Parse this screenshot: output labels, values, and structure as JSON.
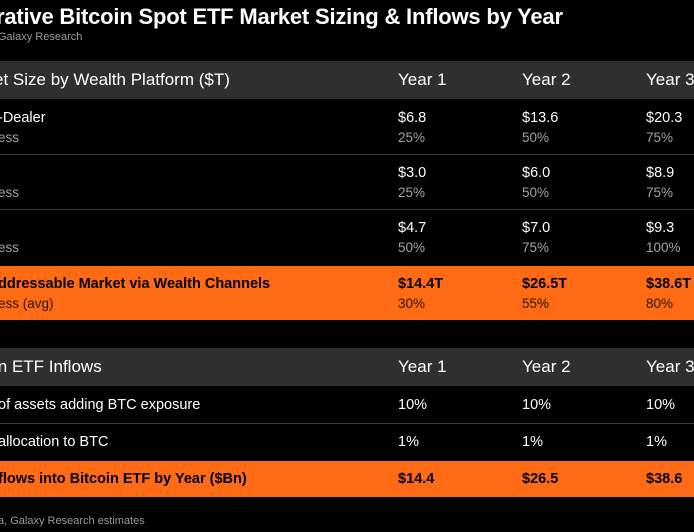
{
  "title": "rative Bitcoin Spot ETF Market Sizing & Inflows by Year",
  "subtitle": "Galaxy Research",
  "market": {
    "header": "et Size by Wealth Platform ($T)",
    "years": [
      "Year 1",
      "Year 2",
      "Year 3"
    ],
    "rows": [
      {
        "label": "-Dealer",
        "sublabel": "ess",
        "values": [
          "$6.8",
          "$13.6",
          "$20.3"
        ],
        "subvalues": [
          "25%",
          "50%",
          "75%"
        ]
      },
      {
        "label": "",
        "sublabel": "ess",
        "values": [
          "$3.0",
          "$6.0",
          "$8.9"
        ],
        "subvalues": [
          "25%",
          "50%",
          "75%"
        ]
      },
      {
        "label": "",
        "sublabel": "ess",
        "values": [
          "$4.7",
          "$7.0",
          "$9.3"
        ],
        "subvalues": [
          "50%",
          "75%",
          "100%"
        ]
      }
    ],
    "total": {
      "label": "ddressable Market via Wealth Channels",
      "sublabel": "ess (avg)",
      "values": [
        "$14.4T",
        "$26.5T",
        "$38.6T"
      ],
      "subvalues": [
        "30%",
        "55%",
        "80%"
      ]
    }
  },
  "inflows": {
    "header": "in ETF Inflows",
    "years": [
      "Year 1",
      "Year 2",
      "Year 3"
    ],
    "rows": [
      {
        "label": "of assets adding BTC exposure",
        "values": [
          "10%",
          "10%",
          "10%"
        ]
      },
      {
        "label": "allocation to BTC",
        "values": [
          "1%",
          "1%",
          "1%"
        ]
      }
    ],
    "total": {
      "label": "flows into Bitcoin ETF by Year ($Bn)",
      "values": [
        "$14.4",
        "$26.5",
        "$38.6"
      ]
    }
  },
  "footer": "a, Galaxy Research estimates",
  "colors": {
    "background": "#000000",
    "header_bg": "#2f2f2f",
    "highlight": "#ff6a14"
  }
}
